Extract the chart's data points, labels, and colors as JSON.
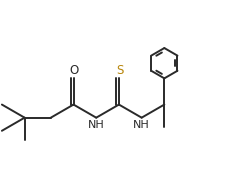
{
  "bg_color": "#ffffff",
  "line_color": "#2a2a2a",
  "line_width": 1.4,
  "S_color": "#b8860b",
  "fig_width": 2.49,
  "fig_height": 1.8,
  "dpi": 100,
  "xlim": [
    0.0,
    8.5
  ],
  "ylim": [
    0.5,
    6.5
  ],
  "O_label": "O",
  "S_label": "S",
  "NH1_label": "NH",
  "NH2_label": "NH"
}
